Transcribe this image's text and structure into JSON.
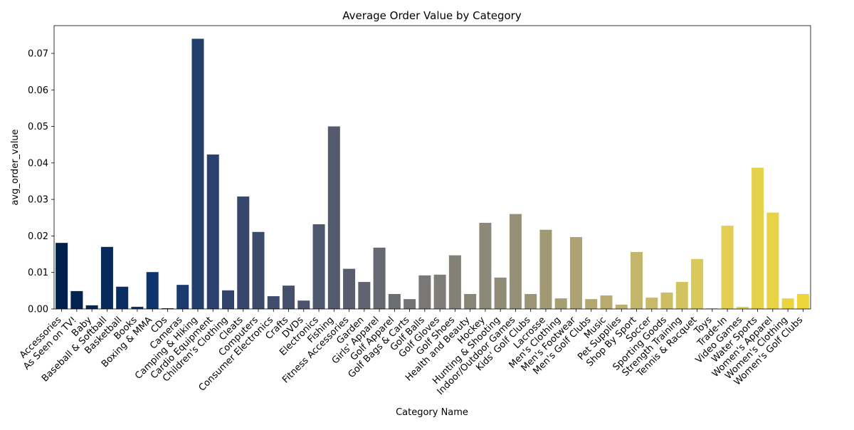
{
  "chart_data": {
    "type": "bar",
    "title": "Average Order Value by Category",
    "xlabel": "Category Name",
    "ylabel": "avg_order_value",
    "ylim": [
      0,
      0.0776
    ],
    "yticks": [
      0.0,
      0.01,
      0.02,
      0.03,
      0.04,
      0.05,
      0.06,
      0.07
    ],
    "ytick_labels": [
      "0.00",
      "0.01",
      "0.02",
      "0.03",
      "0.04",
      "0.05",
      "0.06",
      "0.07"
    ],
    "grid": false,
    "legend": "none",
    "palette": "cividis",
    "categories": [
      "Accessories",
      "As Seen on  TV!",
      "Baby",
      "Baseball & Softball",
      "Basketball",
      "Books",
      "Boxing & MMA",
      "CDs",
      "Cameras",
      "Camping & Hiking",
      "Cardio Equipment",
      "Children's Clothing",
      "Cleats",
      "Computers",
      "Consumer Electronics",
      "Crafts",
      "DVDs",
      "Electronics",
      "Fishing",
      "Fitness Accessories",
      "Garden",
      "Girls' Apparel",
      "Golf Apparel",
      "Golf Bags & Carts",
      "Golf Balls",
      "Golf Gloves",
      "Golf Shoes",
      "Health and Beauty",
      "Hockey",
      "Hunting & Shooting",
      "Indoor/Outdoor Games",
      "Kids' Golf Clubs",
      "Lacrosse",
      "Men's Clothing",
      "Men's Footwear",
      "Men's Golf Clubs",
      "Music",
      "Pet Supplies",
      "Shop By Sport",
      "Soccer",
      "Sporting Goods",
      "Strength Training",
      "Tennis & Racquet",
      "Toys",
      "Trade-In",
      "Video Games",
      "Water Sports",
      "Women's Apparel",
      "Women's Clothing",
      "Women's Golf Clubs"
    ],
    "values": [
      0.0181,
      0.0049,
      0.001,
      0.017,
      0.0061,
      0.0006,
      0.0101,
      0.0002,
      0.0066,
      0.074,
      0.0423,
      0.0051,
      0.0308,
      0.0211,
      0.0035,
      0.0064,
      0.0023,
      0.0232,
      0.05,
      0.011,
      0.0074,
      0.0168,
      0.0041,
      0.0027,
      0.0092,
      0.0094,
      0.0147,
      0.0041,
      0.0236,
      0.0086,
      0.026,
      0.0041,
      0.0217,
      0.0029,
      0.0197,
      0.0027,
      0.0037,
      0.0012,
      0.0156,
      0.0031,
      0.0045,
      0.0074,
      0.0137,
      0.0002,
      0.0228,
      0.0006,
      0.0387,
      0.0264,
      0.0029,
      0.0041
    ]
  }
}
